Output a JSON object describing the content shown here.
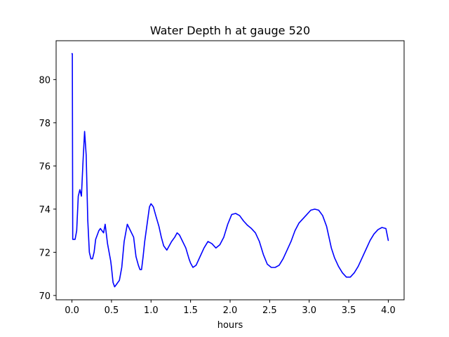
{
  "chart_data": {
    "type": "line",
    "title": "Water Depth h at gauge 520",
    "xlabel": "hours",
    "ylabel": "",
    "xlim": [
      -0.2,
      4.2
    ],
    "ylim": [
      69.8,
      81.8
    ],
    "xticks": [
      0.0,
      0.5,
      1.0,
      1.5,
      2.0,
      2.5,
      3.0,
      3.5,
      4.0
    ],
    "xtick_labels": [
      "0.0",
      "0.5",
      "1.0",
      "1.5",
      "2.0",
      "2.5",
      "3.0",
      "3.5",
      "4.0"
    ],
    "yticks": [
      70,
      72,
      74,
      76,
      78,
      80
    ],
    "ytick_labels": [
      "70",
      "72",
      "74",
      "76",
      "78",
      "80"
    ],
    "grid": false,
    "color": "#0000ff",
    "series": [
      {
        "x": [
          0.0,
          0.005,
          0.01,
          0.02,
          0.04,
          0.06,
          0.08,
          0.1,
          0.12,
          0.14,
          0.16,
          0.18,
          0.2,
          0.22,
          0.24,
          0.26,
          0.28,
          0.3,
          0.32,
          0.34,
          0.36,
          0.38,
          0.4,
          0.42,
          0.45,
          0.48,
          0.49,
          0.5,
          0.52,
          0.54,
          0.56,
          0.58,
          0.6,
          0.63,
          0.66,
          0.7,
          0.74,
          0.78,
          0.81,
          0.84,
          0.86,
          0.88,
          0.9,
          0.92,
          0.95,
          0.98,
          1.0,
          1.03,
          1.06,
          1.1,
          1.13,
          1.16,
          1.2,
          1.23,
          1.26,
          1.3,
          1.33,
          1.36,
          1.4,
          1.44,
          1.48,
          1.5,
          1.53,
          1.57,
          1.62,
          1.67,
          1.72,
          1.77,
          1.82,
          1.87,
          1.92,
          1.97,
          2.02,
          2.07,
          2.12,
          2.17,
          2.22,
          2.27,
          2.32,
          2.37,
          2.42,
          2.47,
          2.52,
          2.57,
          2.62,
          2.67,
          2.72,
          2.77,
          2.82,
          2.87,
          2.92,
          2.97,
          3.02,
          3.07,
          3.12,
          3.17,
          3.22,
          3.25,
          3.28,
          3.32,
          3.37,
          3.42,
          3.47,
          3.52,
          3.57,
          3.62,
          3.67,
          3.72,
          3.77,
          3.82,
          3.87,
          3.92,
          3.97,
          4.0
        ],
        "y": [
          81.2,
          81.2,
          72.6,
          72.6,
          72.6,
          73.0,
          74.6,
          74.9,
          74.6,
          76.2,
          77.6,
          76.5,
          73.5,
          72.0,
          71.7,
          71.7,
          72.0,
          72.6,
          72.8,
          73.0,
          73.1,
          73.0,
          72.9,
          73.3,
          72.4,
          71.8,
          71.6,
          71.3,
          70.6,
          70.4,
          70.5,
          70.6,
          70.7,
          71.3,
          72.5,
          73.3,
          73.0,
          72.7,
          71.8,
          71.4,
          71.2,
          71.2,
          71.8,
          72.5,
          73.3,
          74.1,
          74.25,
          74.1,
          73.7,
          73.2,
          72.7,
          72.3,
          72.1,
          72.3,
          72.5,
          72.7,
          72.9,
          72.8,
          72.5,
          72.2,
          71.7,
          71.5,
          71.3,
          71.4,
          71.8,
          72.2,
          72.5,
          72.4,
          72.2,
          72.35,
          72.7,
          73.3,
          73.75,
          73.8,
          73.7,
          73.45,
          73.25,
          73.1,
          72.9,
          72.5,
          71.9,
          71.45,
          71.3,
          71.3,
          71.4,
          71.7,
          72.1,
          72.5,
          73.0,
          73.35,
          73.55,
          73.75,
          73.95,
          74.0,
          73.95,
          73.7,
          73.2,
          72.7,
          72.2,
          71.75,
          71.35,
          71.05,
          70.85,
          70.85,
          71.05,
          71.35,
          71.75,
          72.15,
          72.55,
          72.85,
          73.05,
          73.15,
          73.1,
          72.55
        ]
      }
    ]
  }
}
